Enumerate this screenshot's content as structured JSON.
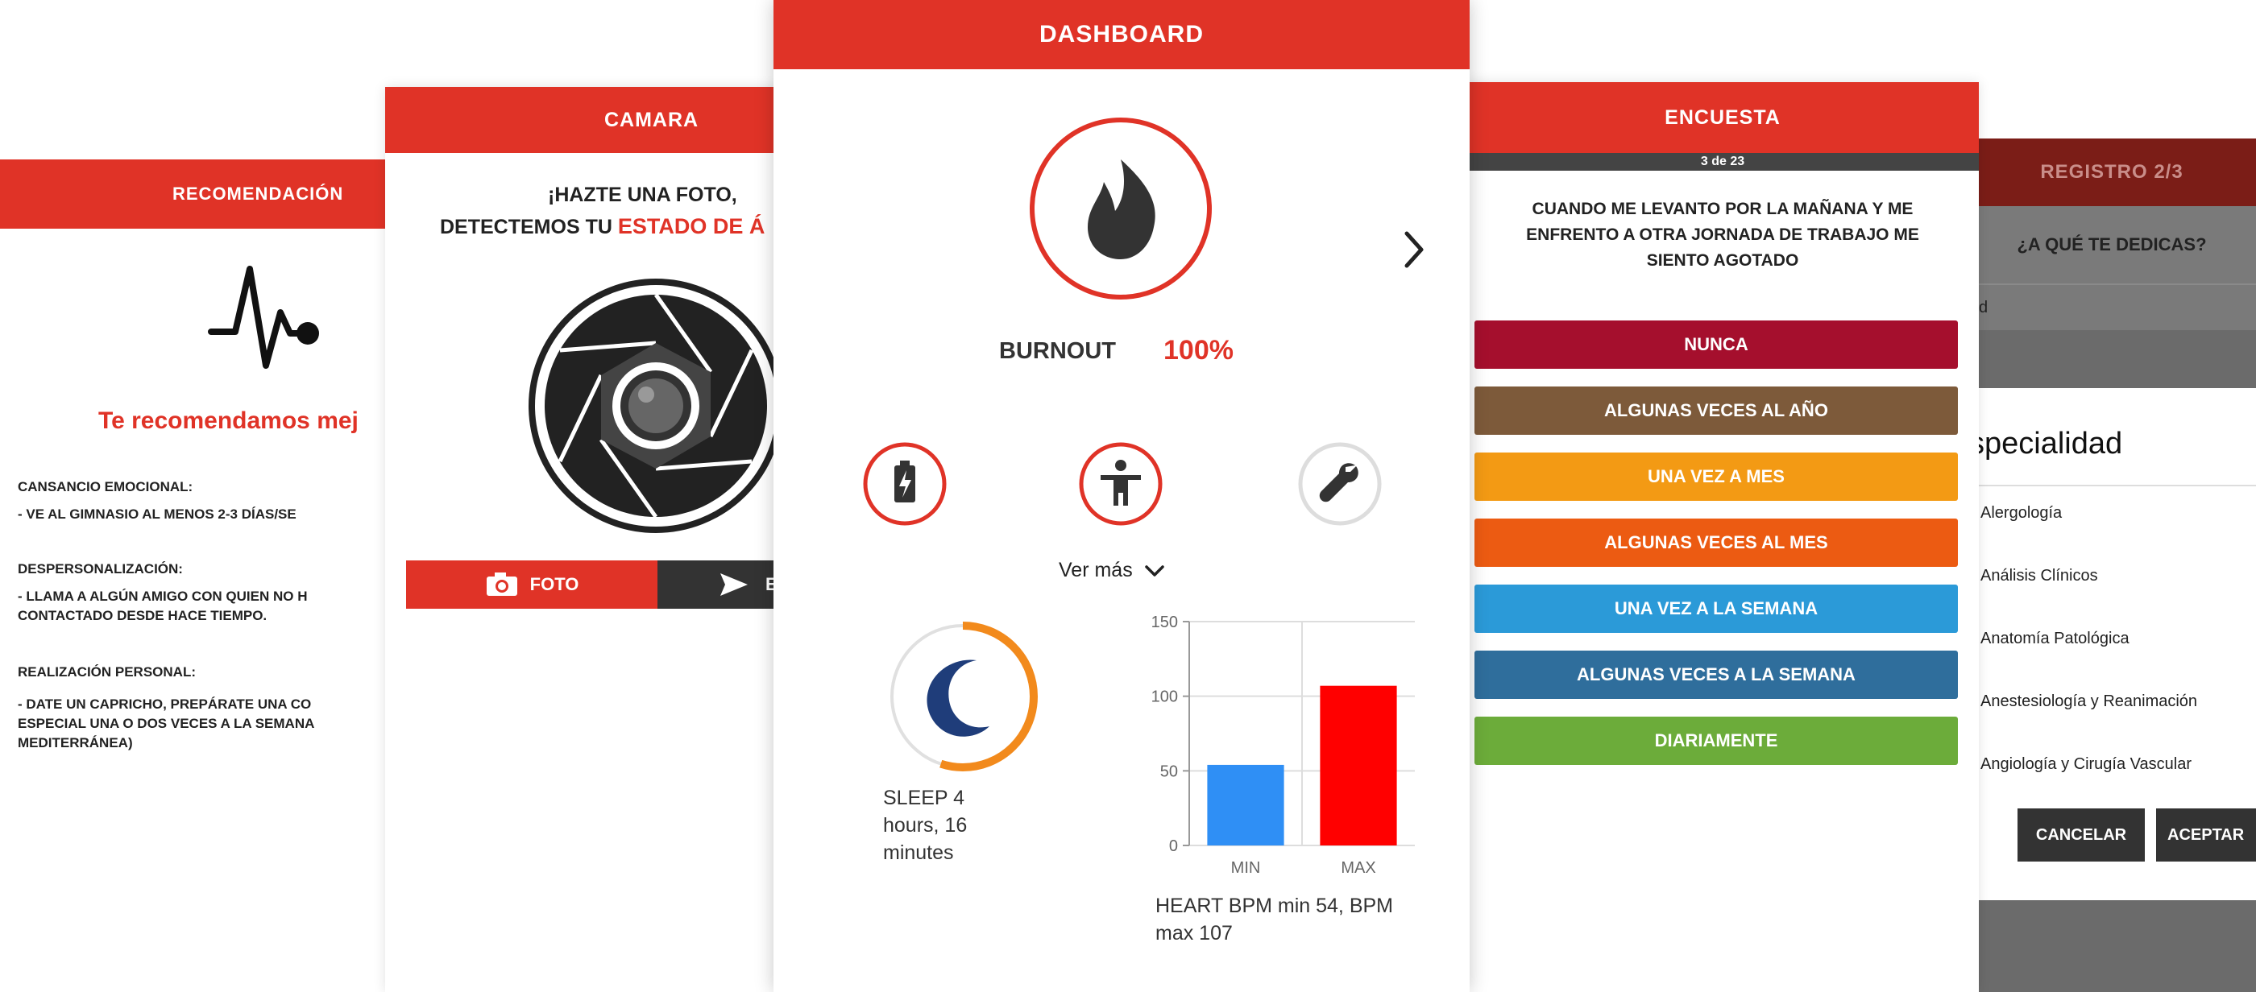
{
  "recomendacion": {
    "title": "RECOMENDACIÓN",
    "intro": "Te recomendamos mej",
    "sections": [
      {
        "heading": "CANSANCIO EMOCIONAL:",
        "text": "- VE AL GIMNASIO AL MENOS 2-3 DÍAS/SE"
      },
      {
        "heading": "DESPERSONALIZACIÓN:",
        "text1": "- LLAMA A ALGÚN AMIGO CON QUIEN NO H",
        "text2": "CONTACTADO DESDE HACE TIEMPO."
      },
      {
        "heading": "REALIZACIÓN PERSONAL:",
        "text1": "- DATE UN CAPRICHO, PREPÁRATE UNA CO",
        "text2": "ESPECIAL UNA O DOS VECES A LA SEMANA",
        "text3": "MEDITERRÁNEA)"
      }
    ]
  },
  "camara": {
    "title": "CAMARA",
    "line1": "¡HAZTE UNA FOTO,",
    "line2a": "DETECTEMOS TU ",
    "line2b": "ESTADO DE Á",
    "foto_label": "FOTO",
    "send_label": "E"
  },
  "dashboard": {
    "title": "DASHBOARD",
    "burnout_label": "BURNOUT",
    "burnout_value": "100%",
    "ver_mas": "Ver más",
    "sleep_text": "SLEEP 4 hours, 16 minutes",
    "sleep_progress": 0.55,
    "heart_text": "HEART BPM min 54, BPM max 107",
    "icons": [
      "flame-icon",
      "battery-icon",
      "person-icon",
      "wrench-icon",
      "moon-icon",
      "chevron-right-icon",
      "chevron-down-icon"
    ],
    "colors": {
      "accent": "#e03327",
      "min_bar": "#2f8ff5",
      "max_bar": "#ff0000",
      "sleep_ring": "#f28a1c",
      "moon": "#1f3d7a"
    }
  },
  "chart_data": {
    "type": "bar",
    "categories": [
      "MIN",
      "MAX"
    ],
    "values": [
      54,
      107
    ],
    "title": "",
    "xlabel": "",
    "ylabel": "",
    "ylim": [
      0,
      150
    ],
    "yticks": [
      0,
      50,
      100,
      150
    ],
    "grid": true
  },
  "encuesta": {
    "title": "ENCUESTA",
    "progress_text": "3 de 23",
    "question": [
      "CUANDO ME LEVANTO POR LA MAÑANA Y ME",
      "ENFRENTO A OTRA JORNADA DE TRABAJO ME",
      "SIENTO AGOTADO"
    ],
    "options": [
      {
        "label": "NUNCA",
        "color": "#a50f2d"
      },
      {
        "label": "ALGUNAS VECES AL AÑO",
        "color": "#7d5a3a"
      },
      {
        "label": "UNA VEZ A MES",
        "color": "#f39a14"
      },
      {
        "label": "ALGUNAS VECES AL MES",
        "color": "#ec5b12"
      },
      {
        "label": "UNA VEZ A LA SEMANA",
        "color": "#2b9ad8"
      },
      {
        "label": "ALGUNAS VECES A LA SEMANA",
        "color": "#2f6e9c"
      },
      {
        "label": "DIARIAMENTE",
        "color": "#6cac3a"
      }
    ]
  },
  "registro": {
    "title": "REGISTRO 2/3",
    "question": "¿A QUÉ TE DEDICAS?",
    "field_fragment": "d",
    "dialog_title": "specialidad",
    "items": [
      "Alergología",
      "Análisis Clínicos",
      "Anatomía Patológica",
      "Anestesiología y Reanimación",
      "Angiología y Cirugía Vascular"
    ],
    "cancel_label": "CANCELAR",
    "accept_label": "ACEPTAR"
  }
}
